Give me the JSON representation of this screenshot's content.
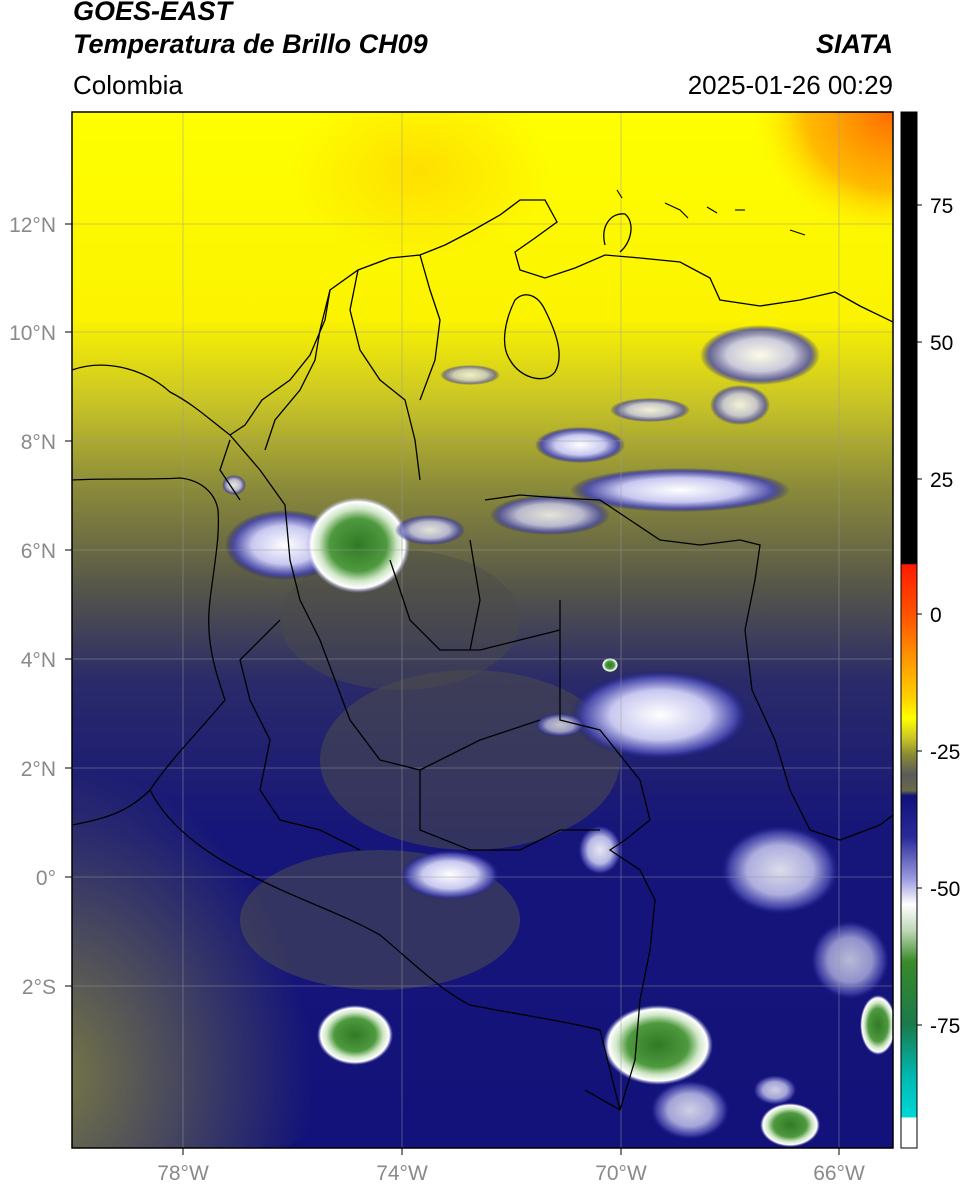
{
  "header": {
    "satellite": "GOES-EAST",
    "product": "Temperatura de Brillo CH09",
    "agency": "SIATA",
    "region": "Colombia",
    "timestamp": "2025-01-26 00:29"
  },
  "axes": {
    "lon_labels": [
      "78°W",
      "74°W",
      "70°W",
      "66°W"
    ],
    "lat_labels": [
      "12°N",
      "10°N",
      "8°N",
      "6°N",
      "4°N",
      "2°N",
      "0°",
      "2°S"
    ]
  },
  "colorbar": {
    "tick_labels": [
      "75",
      "50",
      "25",
      "0",
      "-25",
      "-50",
      "-75"
    ],
    "colors": {
      "black": "#000000",
      "red": "#ff1a00",
      "orange": "#ff9a00",
      "yellow": "#ffff00",
      "olive": "#8c8c33",
      "gray": "#5a5a5a",
      "navy": "#11117a",
      "lavender": "#9a9ae0",
      "white": "#ffffff",
      "green": "#3a8a2a",
      "cyan": "#00d8d8"
    }
  },
  "colors": {
    "warm_north": "#ffff00",
    "hot_corner": "#ff7a00",
    "mid_olive": "#8c8c3a",
    "cold_navy": "#12127a",
    "gray_land": "#55554a",
    "cloud_white": "#ffffff",
    "core_green": "#4f9a3f"
  }
}
